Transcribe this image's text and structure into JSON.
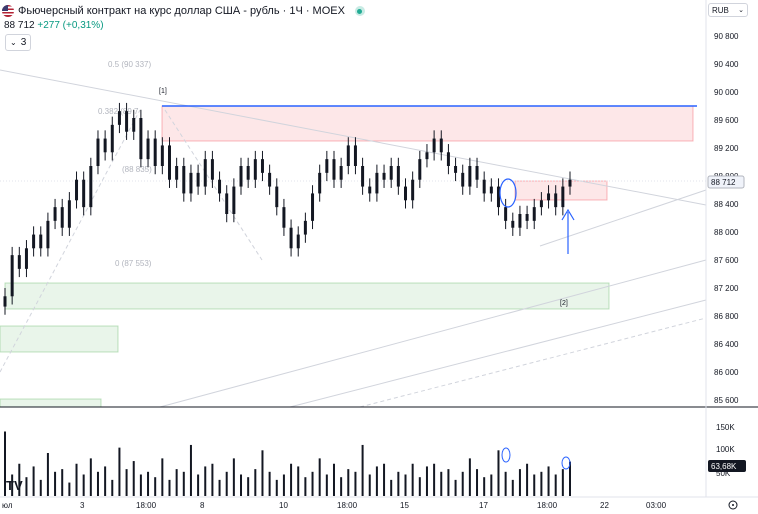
{
  "header": {
    "title": "Фьючерсный контракт на курс доллар США - рубль · 1Ч · MOEX",
    "last_price": "88 712",
    "change": "+277 (+0,31%)",
    "collapse_label": "3"
  },
  "currency": {
    "label": "RUB"
  },
  "price_axis": {
    "ticks": [
      "90 800",
      "90 400",
      "90 000",
      "89 600",
      "89 200",
      "88 800",
      "88 400",
      "88 000",
      "87 600",
      "87 200",
      "86 800",
      "86 400",
      "86 000",
      "85 600"
    ],
    "current_price": "88 712"
  },
  "volume_axis": {
    "ticks": [
      "150K",
      "100K",
      "50K"
    ],
    "current_volume": "63,68K"
  },
  "time_axis": [
    "юл",
    "3",
    "18:00",
    "8",
    "10",
    "18:00",
    "15",
    "17",
    "18:00",
    "22",
    "03:00"
  ],
  "fib_labels": [
    "0.5 (90 337)",
    "0.382 (89 7",
    "(88 835)",
    "0 (87 553)"
  ],
  "annotations": [
    "[1]",
    "[2]"
  ],
  "tv_logo": "TV",
  "colors": {
    "up": "#089981",
    "accent_blue": "#2962ff",
    "red_zone": "#f23645",
    "green_zone": "#4caf50"
  },
  "chart_data": {
    "type": "candlestick",
    "title": "Фьючерсный контракт на курс доллар США - рубль · 1Ч · MOEX",
    "ylim": [
      85400,
      91000
    ],
    "series": [
      {
        "values": [
          87000,
          87600,
          87400,
          87700,
          87900,
          87700,
          88100,
          88300,
          88000,
          88400,
          88700,
          88300,
          88900,
          89300,
          89100,
          89500,
          89700,
          89400,
          89600,
          89000,
          89300,
          88900,
          89200,
          88700,
          88900,
          88500,
          88800,
          88600,
          89000,
          88700,
          88500,
          88200,
          88600,
          88900,
          88700,
          89000,
          88800,
          88600,
          88300,
          88000,
          87700,
          87900,
          88100,
          88500,
          88800,
          89000,
          88700,
          88900,
          89200,
          88900,
          88600,
          88500,
          88800,
          88700,
          88900,
          88600,
          88400,
          88700,
          89000,
          89100,
          89300,
          89100,
          88900,
          88800,
          88600,
          88900,
          88700,
          88500,
          88600,
          88300,
          88100,
          88000,
          88200,
          88100,
          88300,
          88400,
          88500,
          88300,
          88600,
          88700
        ]
      }
    ],
    "volume": [
      120,
      40,
      60,
      35,
      55,
      30,
      80,
      45,
      50,
      25,
      60,
      40,
      70,
      45,
      55,
      30,
      90,
      50,
      65,
      40,
      45,
      35,
      70,
      30,
      50,
      45,
      95,
      40,
      55,
      60,
      30,
      45,
      70,
      40,
      35,
      50,
      85,
      45,
      30,
      40,
      60,
      55,
      35,
      45,
      70,
      40,
      60,
      35,
      50,
      45,
      95,
      40,
      55,
      60,
      30,
      45,
      40,
      60,
      35,
      55,
      60,
      45,
      50,
      30,
      45,
      70,
      50,
      35,
      40,
      85,
      45,
      30,
      50,
      60,
      40,
      45,
      55,
      40,
      50,
      64
    ]
  }
}
